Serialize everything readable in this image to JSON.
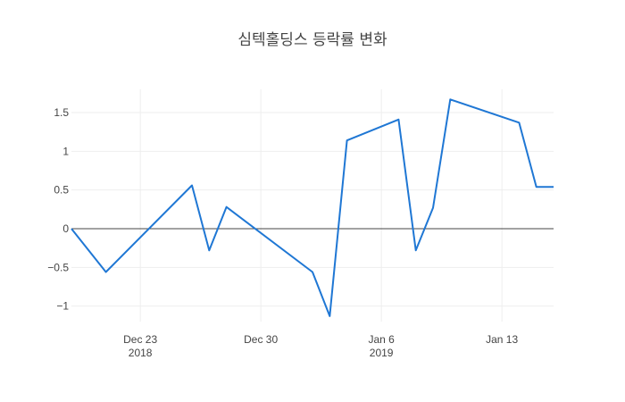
{
  "chart_data": {
    "type": "line",
    "title": "심텍홀딩스 등락률 변화",
    "xlabel": "",
    "ylabel": "",
    "x": [
      "2018-12-19",
      "2018-12-21",
      "2018-12-26",
      "2018-12-27",
      "2018-12-28",
      "2019-01-02",
      "2019-01-03",
      "2019-01-04",
      "2019-01-07",
      "2019-01-08",
      "2019-01-09",
      "2019-01-10",
      "2019-01-14",
      "2019-01-15",
      "2019-01-16"
    ],
    "series": [
      {
        "color": "#1f77d4",
        "values": [
          0.0,
          -0.56,
          0.56,
          -0.28,
          0.28,
          -0.56,
          -1.13,
          1.14,
          1.41,
          -0.28,
          0.27,
          1.67,
          1.37,
          0.54,
          0.54
        ]
      }
    ],
    "ylim": [
      -1.2,
      1.8
    ],
    "yticks": [
      {
        "value": 1.5,
        "label": "1.5"
      },
      {
        "value": 1,
        "label": "1"
      },
      {
        "value": 0.5,
        "label": "0.5"
      },
      {
        "value": 0,
        "label": "0"
      },
      {
        "value": -0.5,
        "label": "−0.5"
      },
      {
        "value": -1,
        "label": "−1"
      }
    ],
    "xticks": [
      {
        "date": "2018-12-23",
        "label": "Dec 23",
        "sublabel": "2018"
      },
      {
        "date": "2018-12-30",
        "label": "Dec 30",
        "sublabel": ""
      },
      {
        "date": "2019-01-06",
        "label": "Jan 6",
        "sublabel": "2019"
      },
      {
        "date": "2019-01-13",
        "label": "Jan 13",
        "sublabel": ""
      }
    ],
    "xlim": [
      "2018-12-19",
      "2019-01-16"
    ],
    "grid": true,
    "zero_line": true
  }
}
